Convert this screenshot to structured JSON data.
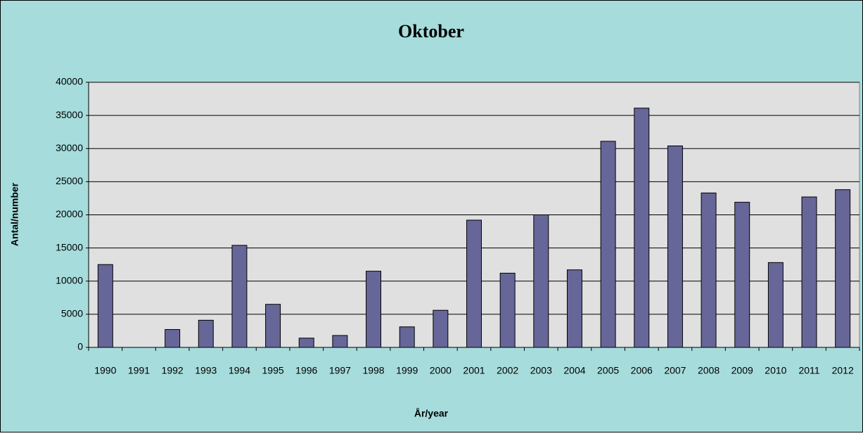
{
  "chart_data": {
    "type": "bar",
    "title": "Oktober",
    "x_label": "År/year",
    "y_label": "Antal/number",
    "categories": [
      "1990",
      "1991",
      "1992",
      "1993",
      "1994",
      "1995",
      "1996",
      "1997",
      "1998",
      "1999",
      "2000",
      "2001",
      "2002",
      "2003",
      "2004",
      "2005",
      "2006",
      "2007",
      "2008",
      "2009",
      "2010",
      "2011",
      "2012"
    ],
    "values": [
      12500,
      0,
      2700,
      4100,
      15400,
      6500,
      1400,
      1800,
      11500,
      3100,
      5600,
      19200,
      11200,
      20000,
      11700,
      31100,
      36100,
      30400,
      23300,
      21900,
      12800,
      22700,
      23800
    ],
    "color": "#666699",
    "ylim": [
      0,
      40000
    ],
    "yticks": [
      0,
      5000,
      10000,
      15000,
      20000,
      25000,
      30000,
      35000,
      40000
    ],
    "grid": true
  }
}
